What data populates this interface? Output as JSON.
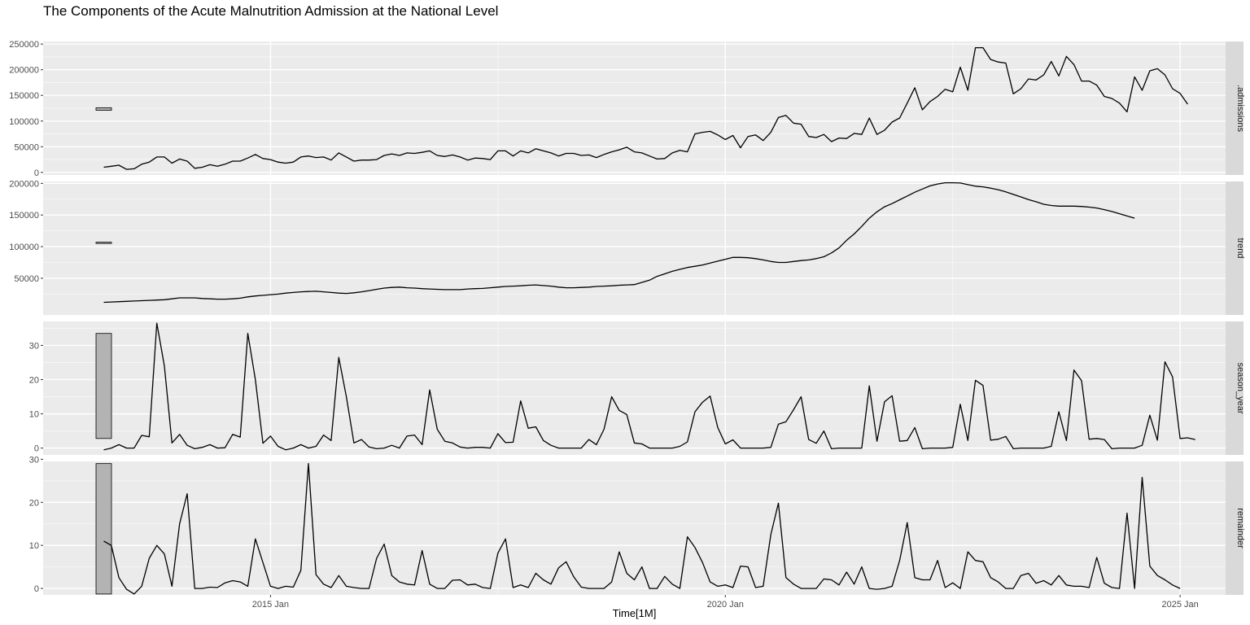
{
  "chart_data": {
    "type": "line",
    "title": "The Components of the Acute Malnutrition Admission at the National Level",
    "xlabel": "Time[1M]",
    "x_ticks": [
      "2015 Jan",
      "2020 Jan",
      "2025 Jan"
    ],
    "x_range": [
      "2012-07",
      "2025-07"
    ],
    "x_start": "2013-03",
    "grid": true,
    "panels": [
      {
        "name": ".admissions",
        "ylim": [
          -5000,
          255000
        ],
        "y_ticks": [
          0,
          50000,
          100000,
          150000,
          200000,
          250000
        ],
        "y_tick_labels": [
          "0",
          "50000",
          "100000",
          "150000",
          "200000",
          "250000"
        ],
        "scale_bar": [
          121000,
          126000
        ],
        "values": [
          10000,
          12000,
          14000,
          6000,
          7000,
          16000,
          20000,
          30000,
          30000,
          18000,
          26000,
          22000,
          8000,
          10000,
          15000,
          12000,
          16000,
          22000,
          22000,
          28000,
          35000,
          27000,
          25000,
          20000,
          18000,
          20000,
          30000,
          32000,
          29000,
          30000,
          24000,
          38000,
          30000,
          22000,
          24000,
          24000,
          25000,
          33000,
          36000,
          33000,
          38000,
          37000,
          39000,
          42000,
          33000,
          31000,
          34000,
          30000,
          24000,
          28000,
          27000,
          25000,
          42000,
          42000,
          32000,
          42000,
          38000,
          46000,
          42000,
          38000,
          32000,
          37000,
          37000,
          33000,
          34000,
          29000,
          35000,
          40000,
          44000,
          49000,
          40000,
          38000,
          32000,
          26000,
          27000,
          38000,
          43000,
          40000,
          75000,
          78000,
          80000,
          73000,
          64000,
          72000,
          48000,
          70000,
          73000,
          62000,
          78000,
          107000,
          111000,
          96000,
          94000,
          70000,
          68000,
          74000,
          60000,
          67000,
          66000,
          76000,
          74000,
          106000,
          74000,
          82000,
          98000,
          106000,
          135000,
          165000,
          122000,
          138000,
          148000,
          162000,
          157000,
          205000,
          160000,
          243000,
          243000,
          220000,
          215000,
          213000,
          153000,
          163000,
          182000,
          180000,
          190000,
          216000,
          188000,
          226000,
          210000,
          178000,
          178000,
          170000,
          148000,
          144000,
          135000,
          118000,
          186000,
          160000,
          198000,
          202000,
          190000,
          163000,
          154000,
          133000
        ]
      },
      {
        "name": "trend",
        "ylim": [
          -8000,
          203000
        ],
        "y_ticks": [
          50000,
          100000,
          150000,
          200000
        ],
        "y_tick_labels": [
          "50000",
          "100000",
          "150000",
          "200000"
        ],
        "scale_bar": [
          105000,
          107000
        ],
        "values": [
          12000,
          12500,
          13000,
          13500,
          14000,
          14500,
          15000,
          15500,
          16000,
          17500,
          19000,
          19000,
          19000,
          18000,
          17500,
          17000,
          17000,
          17500,
          18500,
          20500,
          22000,
          23000,
          24000,
          25000,
          26500,
          27500,
          28500,
          29000,
          29500,
          28500,
          27500,
          26500,
          26000,
          27000,
          28500,
          30500,
          32500,
          34500,
          35500,
          36000,
          35000,
          34500,
          33500,
          33000,
          32500,
          32000,
          32000,
          32000,
          33000,
          33500,
          34000,
          35000,
          36000,
          37000,
          37500,
          38000,
          39000,
          39500,
          38500,
          37500,
          36000,
          35000,
          35000,
          35500,
          36000,
          37000,
          37500,
          38000,
          39000,
          39500,
          40000,
          43500,
          47000,
          53000,
          57000,
          61000,
          64000,
          67000,
          69000,
          71000,
          74000,
          77000,
          80000,
          83000,
          83000,
          82500,
          81000,
          79000,
          76500,
          75000,
          75000,
          76500,
          78000,
          79000,
          81000,
          84000,
          90000,
          98000,
          110000,
          120000,
          132000,
          145000,
          155000,
          163000,
          168000,
          174000,
          180000,
          186000,
          191000,
          196000,
          199000,
          201000,
          201000,
          200500,
          198000,
          195500,
          194500,
          192500,
          190000,
          186500,
          182500,
          178500,
          174500,
          171000,
          167000,
          165000,
          164000,
          164000,
          164000,
          163500,
          162500,
          161000,
          158500,
          155500,
          152000,
          148500,
          145000
        ]
      },
      {
        "name": "season_year",
        "ylim": [
          -2,
          37
        ],
        "y_ticks": [
          0,
          10,
          20,
          30
        ],
        "y_tick_labels": [
          "0",
          "10",
          "20",
          "30"
        ],
        "scale_bar": [
          2.8,
          33.5
        ],
        "values": [
          -0.5,
          0,
          1,
          0,
          0,
          3.7,
          3.3,
          36.5,
          24,
          1.5,
          4,
          0.8,
          -0.2,
          0.2,
          1,
          0,
          0.1,
          4,
          3.2,
          33.5,
          20,
          1.4,
          3.5,
          0.5,
          -0.5,
          0,
          1,
          0,
          0.5,
          3.8,
          2.2,
          26.5,
          15,
          1.5,
          2.5,
          0.3,
          -0.2,
          0,
          0.8,
          0,
          3.5,
          3.8,
          1,
          17,
          5.5,
          2,
          1.5,
          0.3,
          0,
          0.2,
          0.2,
          0,
          4.2,
          1.6,
          1.7,
          13.8,
          5.8,
          6.2,
          2.2,
          0.8,
          0,
          0,
          0,
          0,
          2.5,
          1,
          5.5,
          15,
          11,
          9.8,
          1.5,
          1.2,
          0,
          0,
          0,
          0,
          0.5,
          1.8,
          10.6,
          13.4,
          15.2,
          6,
          1.2,
          2.4,
          0,
          0,
          0,
          0,
          0.2,
          7,
          7.7,
          11.2,
          15,
          2.5,
          1.4,
          5,
          -0.2,
          0,
          0,
          0,
          0,
          18.2,
          2,
          13.5,
          15.3,
          2,
          2.2,
          6,
          -0.2,
          0,
          0,
          0,
          0.2,
          12.8,
          2.2,
          19.8,
          18.3,
          2.3,
          2.6,
          3.4,
          -0.2,
          0,
          0,
          0,
          0,
          0.5,
          10.6,
          2.2,
          22.8,
          19.7,
          2.6,
          2.8,
          2.5,
          -0.2,
          0,
          0,
          0,
          0.8,
          9.6,
          2.3,
          25.2,
          20.8,
          2.8,
          3,
          2.5
        ]
      },
      {
        "name": "remainder",
        "ylim": [
          -1.5,
          29.5
        ],
        "y_ticks": [
          0,
          10,
          20,
          30
        ],
        "y_tick_labels": [
          "0",
          "10",
          "20",
          "30"
        ],
        "scale_bar": [
          -1.3,
          29
        ],
        "values": [
          11,
          10,
          2.5,
          -0.2,
          -1.3,
          0.5,
          7,
          10,
          8,
          0.5,
          15,
          22,
          0,
          0,
          0.3,
          0.2,
          1.3,
          1.8,
          1.5,
          0.5,
          11.5,
          6,
          0.5,
          0,
          0.5,
          0.3,
          4.2,
          29,
          3.2,
          1,
          0.2,
          3,
          0.5,
          0.2,
          0,
          0,
          7,
          10.3,
          3,
          1.5,
          1,
          0.8,
          8.8,
          1,
          0,
          0,
          1.9,
          2,
          0.8,
          1,
          0.2,
          0,
          8.2,
          11.5,
          0.2,
          0.8,
          0.2,
          3.5,
          2,
          1,
          4.8,
          6.2,
          2.7,
          0.3,
          0,
          0,
          0,
          1.5,
          8.5,
          3.5,
          2,
          5,
          0,
          0,
          2.8,
          1,
          0,
          12,
          9.5,
          6,
          1.5,
          0.5,
          0.8,
          0.2,
          5.2,
          5,
          0.2,
          0.5,
          12.5,
          19.8,
          2.5,
          1,
          0,
          0,
          0,
          2.2,
          2,
          0.8,
          3.8,
          1,
          5,
          0,
          -0.2,
          0,
          0.5,
          6.5,
          15.3,
          2.5,
          2,
          2,
          6.5,
          0.2,
          1.3,
          0,
          8.5,
          6.5,
          6.2,
          2.5,
          1.5,
          0,
          0,
          3,
          3.5,
          1.2,
          1.8,
          0.8,
          3,
          0.8,
          0.5,
          0.5,
          0.2,
          7.2,
          1.2,
          0.2,
          0,
          17.5,
          0,
          25.8,
          5.2,
          3,
          2,
          0.8,
          0
        ]
      }
    ]
  }
}
